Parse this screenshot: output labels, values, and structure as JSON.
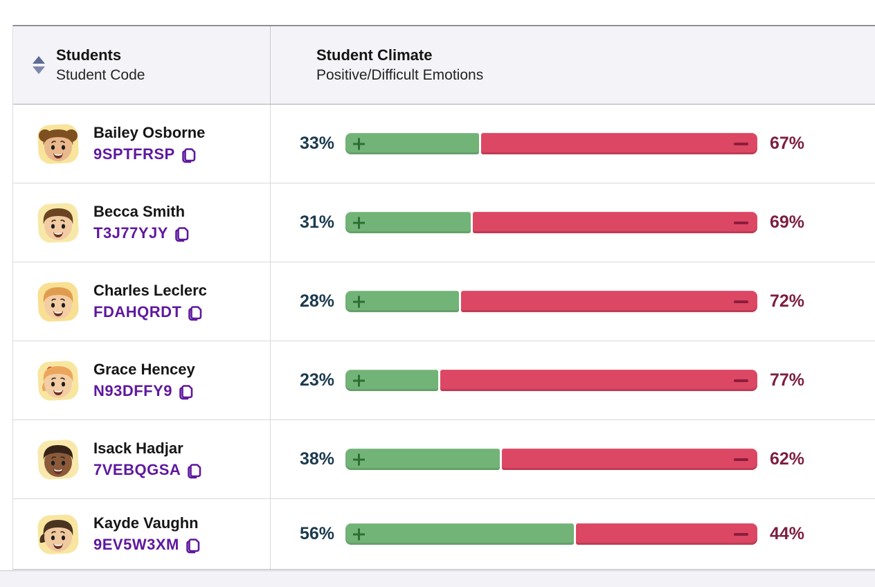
{
  "header": {
    "col1_title": "Students",
    "col1_subtitle": "Student Code",
    "col2_title": "Student Climate",
    "col2_subtitle": "Positive/Difficult Emotions"
  },
  "colors": {
    "positive_bar": "#72b377",
    "positive_glyph": "#2d6e35",
    "negative_bar": "#dc4763",
    "negative_glyph": "#8c1c3c",
    "positive_pct_text": "#1b3a4e",
    "negative_pct_text": "#7c1f40",
    "code_purple": "#5e189e",
    "header_bg": "#f4f3f7",
    "sort_icon": "#5c6b96"
  },
  "rows": [
    {
      "name": "Bailey Osborne",
      "code": "9SPTFRSP",
      "positive_label": "33%",
      "negative_label": "67%",
      "positive": 33,
      "negative": 67,
      "avatar": {
        "label": "girl-with-buns",
        "bg": "#f8e49b",
        "skin": "#e9b88d",
        "hair": "#7d4f21",
        "style": "buns"
      }
    },
    {
      "name": "Becca Smith",
      "code": "T3J77YJY",
      "positive_label": "31%",
      "negative_label": "69%",
      "positive": 31,
      "negative": 69,
      "avatar": {
        "label": "boy-brown-hair",
        "bg": "#f8e8a8",
        "skin": "#f2cba2",
        "hair": "#6b4423",
        "style": "short"
      }
    },
    {
      "name": "Charles Leclerc",
      "code": "FDAHQRDT",
      "positive_label": "28%",
      "negative_label": "72%",
      "positive": 28,
      "negative": 72,
      "avatar": {
        "label": "boy-orange-hair",
        "bg": "#f8df92",
        "skin": "#f3cda4",
        "hair": "#e09c4e",
        "style": "short"
      }
    },
    {
      "name": "Grace Hencey",
      "code": "N93DFFY9",
      "positive_label": "23%",
      "negative_label": "77%",
      "positive": 23,
      "negative": 77,
      "avatar": {
        "label": "girl-with-bow",
        "bg": "#f8e6a0",
        "skin": "#f3cda4",
        "hair": "#eba65c",
        "style": "bow"
      }
    },
    {
      "name": "Isack Hadjar",
      "code": "7VEBQGSA",
      "positive_label": "38%",
      "negative_label": "62%",
      "positive": 38,
      "negative": 62,
      "avatar": {
        "label": "boy-dark-skin",
        "bg": "#f8e8ab",
        "skin": "#8a5a3b",
        "hair": "#352317",
        "style": "dark"
      }
    },
    {
      "name": "Kayde Vaughn",
      "code": "9EV5W3XM",
      "positive_label": "56%",
      "negative_label": "44%",
      "positive": 56,
      "negative": 44,
      "avatar": {
        "label": "girl-ponytail",
        "bg": "#f8e6a0",
        "skin": "#f0c9a0",
        "hair": "#4a3320",
        "style": "ponytail"
      }
    }
  ]
}
